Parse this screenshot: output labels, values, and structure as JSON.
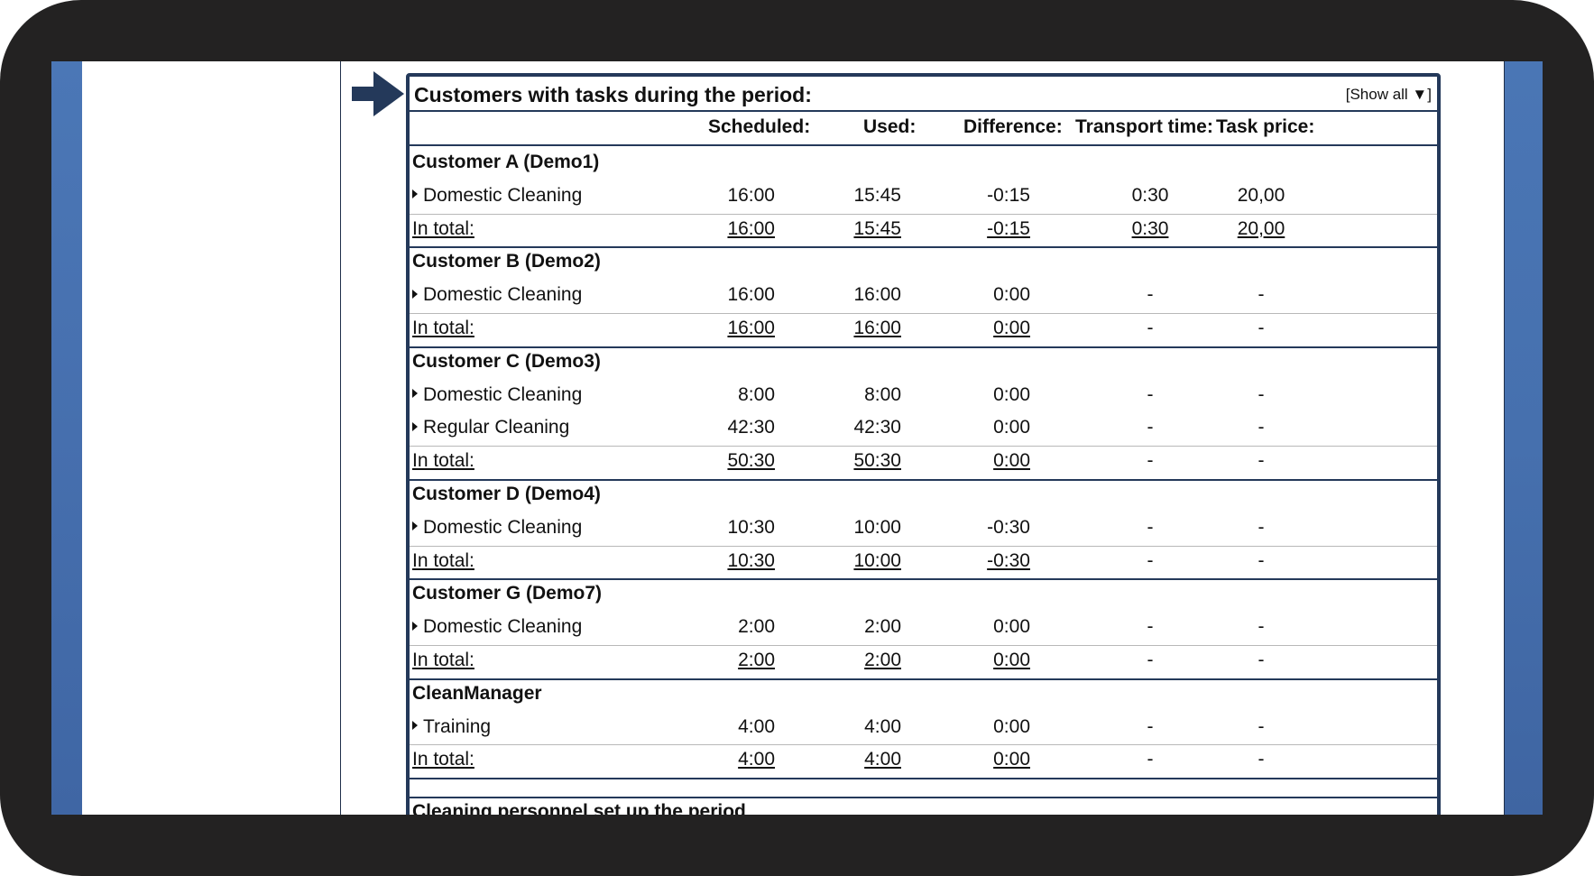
{
  "panel": {
    "title": "Customers with tasks during the period:",
    "show_all": "[Show all ▼]"
  },
  "columns": {
    "scheduled": "Scheduled:",
    "used": "Used:",
    "difference": "Difference:",
    "transport": "Transport time:",
    "price": "Task price:"
  },
  "total_label": "In total:",
  "customers": [
    {
      "name": "Customer A (Demo1)",
      "tasks": [
        {
          "name": "Domestic Cleaning",
          "scheduled": "16:00",
          "used": "15:45",
          "difference": "-0:15",
          "transport": "0:30",
          "price": "20,00"
        }
      ],
      "total": {
        "scheduled": "16:00",
        "used": "15:45",
        "difference": "-0:15",
        "transport": "0:30",
        "price": "20,00"
      }
    },
    {
      "name": "Customer B (Demo2)",
      "tasks": [
        {
          "name": "Domestic Cleaning",
          "scheduled": "16:00",
          "used": "16:00",
          "difference": "0:00",
          "transport": "-",
          "price": "-"
        }
      ],
      "total": {
        "scheduled": "16:00",
        "used": "16:00",
        "difference": "0:00",
        "transport": "-",
        "price": "-"
      }
    },
    {
      "name": "Customer C (Demo3)",
      "tasks": [
        {
          "name": "Domestic Cleaning",
          "scheduled": "8:00",
          "used": "8:00",
          "difference": "0:00",
          "transport": "-",
          "price": "-"
        },
        {
          "name": "Regular Cleaning",
          "scheduled": "42:30",
          "used": "42:30",
          "difference": "0:00",
          "transport": "-",
          "price": "-"
        }
      ],
      "total": {
        "scheduled": "50:30",
        "used": "50:30",
        "difference": "0:00",
        "transport": "-",
        "price": "-"
      }
    },
    {
      "name": "Customer D (Demo4)",
      "tasks": [
        {
          "name": "Domestic Cleaning",
          "scheduled": "10:30",
          "used": "10:00",
          "difference": "-0:30",
          "transport": "-",
          "price": "-"
        }
      ],
      "total": {
        "scheduled": "10:30",
        "used": "10:00",
        "difference": "-0:30",
        "transport": "-",
        "price": "-"
      }
    },
    {
      "name": "Customer G (Demo7)",
      "tasks": [
        {
          "name": "Domestic Cleaning",
          "scheduled": "2:00",
          "used": "2:00",
          "difference": "0:00",
          "transport": "-",
          "price": "-"
        }
      ],
      "total": {
        "scheduled": "2:00",
        "used": "2:00",
        "difference": "0:00",
        "transport": "-",
        "price": "-"
      }
    },
    {
      "name": "CleanManager",
      "tasks": [
        {
          "name": "Training",
          "scheduled": "4:00",
          "used": "4:00",
          "difference": "0:00",
          "transport": "-",
          "price": "-"
        }
      ],
      "total": {
        "scheduled": "4:00",
        "used": "4:00",
        "difference": "0:00",
        "transport": "-",
        "price": "-"
      }
    }
  ],
  "next_section_title": "Cleaning personnel set up the period"
}
